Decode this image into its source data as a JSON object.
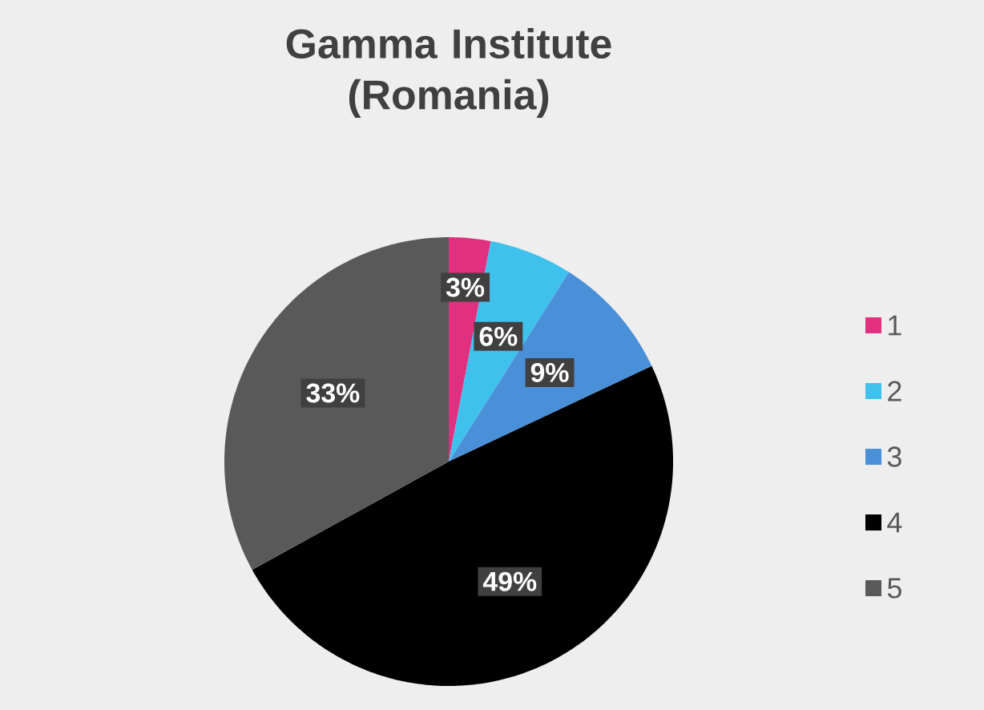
{
  "chart_data": {
    "type": "pie",
    "title": "Gamma Institute (Romania)",
    "categories": [
      "1",
      "2",
      "3",
      "4",
      "5"
    ],
    "values": [
      3,
      6,
      9,
      49,
      33
    ],
    "value_labels": [
      "3%",
      "6%",
      "9%",
      "49%",
      "33%"
    ],
    "colors": [
      "#e0307f",
      "#3ec1ec",
      "#4a90d9",
      "#000000",
      "#595959"
    ],
    "legend": "right"
  }
}
